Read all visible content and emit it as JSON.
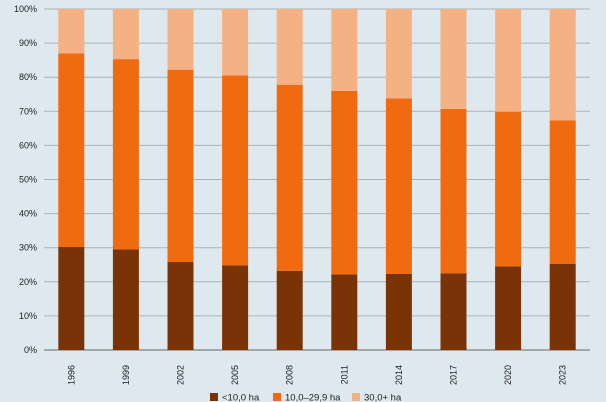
{
  "chart_data": {
    "type": "bar",
    "stacked": true,
    "categories": [
      "1996",
      "1999",
      "2002",
      "2005",
      "2008",
      "2011",
      "2014",
      "2017",
      "2020",
      "2023"
    ],
    "series": [
      {
        "name": "<10,0 ha",
        "color": "#7a3306",
        "values": [
          30.2,
          29.5,
          25.8,
          24.8,
          23.2,
          22.2,
          22.3,
          22.5,
          24.5,
          25.3
        ]
      },
      {
        "name": "10,0–29,9 ha",
        "color": "#f06a10",
        "values": [
          56.8,
          55.8,
          56.4,
          55.7,
          54.6,
          53.8,
          51.5,
          48.2,
          45.4,
          42.0
        ]
      },
      {
        "name": "30,0+ ha",
        "color": "#f4b284",
        "values": [
          13.0,
          14.7,
          17.8,
          19.5,
          22.2,
          24.0,
          26.2,
          29.3,
          30.1,
          32.7
        ]
      }
    ],
    "y_ticks": [
      "0%",
      "10%",
      "20%",
      "30%",
      "40%",
      "50%",
      "60%",
      "70%",
      "80%",
      "90%",
      "100%"
    ],
    "ylim": [
      0,
      100
    ],
    "grid": true,
    "legend_position": "bottom"
  }
}
